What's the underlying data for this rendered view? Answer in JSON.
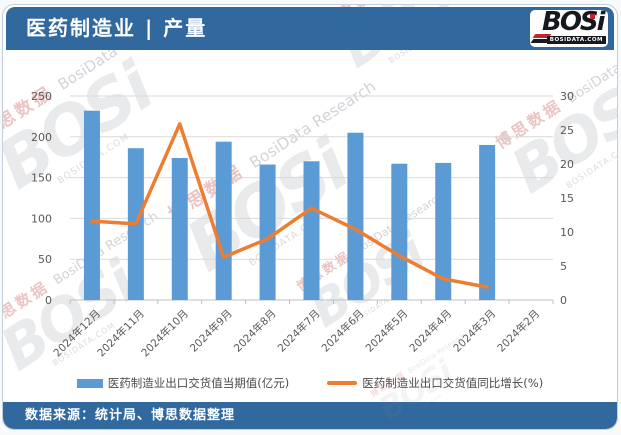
{
  "header": {
    "title": "医药制造业 | 产量",
    "logo": {
      "text": "BOSi",
      "domain": "BOSIDATA.COM"
    }
  },
  "watermark": {
    "cn": "博思数据",
    "en": "BosiData Research",
    "logo": "BOSi",
    "domain": "BOSIDATA.COM"
  },
  "chart_data": {
    "type": "bar",
    "subtype": "bar+line combo, dual axis",
    "categories": [
      "2024年12月",
      "2024年11月",
      "2024年10月",
      "2024年9月",
      "2024年8月",
      "2024年7月",
      "2024年6月",
      "2024年5月",
      "2024年4月",
      "2024年3月",
      "2024年2月"
    ],
    "series": [
      {
        "name": "医药制造业出口交货值当期值(亿元)",
        "kind": "bar",
        "axis": "left",
        "color": "#5B9BD5",
        "values": [
          232,
          186,
          174,
          194,
          166,
          170,
          205,
          167,
          168,
          190,
          null
        ]
      },
      {
        "name": "医药制造业出口交货值同比增长(%)",
        "kind": "line",
        "axis": "right",
        "color": "#ED7D31",
        "values": [
          11.6,
          11.2,
          25.9,
          6.3,
          9.0,
          13.5,
          10.4,
          6.5,
          3.1,
          1.9,
          null
        ]
      }
    ],
    "left_axis": {
      "min": 0,
      "max": 250,
      "ticks": [
        0,
        50,
        100,
        150,
        200,
        250
      ]
    },
    "right_axis": {
      "min": 0,
      "max": 30,
      "ticks": [
        0,
        5,
        10,
        15,
        20,
        25,
        30
      ]
    },
    "grid": true,
    "legend_position": "bottom",
    "title": "",
    "xlabel": "",
    "ylabel": ""
  },
  "footer": {
    "source": "数据来源：统计局、博思数据整理"
  },
  "colors": {
    "banner": "#31689E",
    "bar": "#5B9BD5",
    "line": "#ED7D31",
    "grid": "#D9D9D9",
    "axis_line": "#BFBFBF",
    "axis_text": "#595959"
  }
}
